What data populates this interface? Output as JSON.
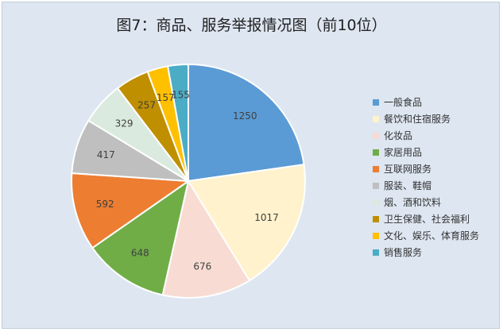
{
  "chart_data": {
    "type": "pie",
    "title": "图7：商品、服务举报情况图（前10位）",
    "legend_position": "right",
    "categories": [
      "一般食品",
      "餐饮和住宿服务",
      "化妆品",
      "家居用品",
      "互联网服务",
      "服装、鞋帽",
      "烟、酒和饮料",
      "卫生保健、社会福利",
      "文化、娱乐、体育服务",
      "销售服务"
    ],
    "values": [
      1250,
      1017,
      676,
      648,
      592,
      417,
      329,
      257,
      157,
      155
    ],
    "colors": [
      "#5b9bd5",
      "#fff2cc",
      "#f8dcd4",
      "#70ad47",
      "#ed7d31",
      "#bfbfbf",
      "#dbeadf",
      "#bf8f00",
      "#ffc000",
      "#4bacc6"
    ]
  }
}
